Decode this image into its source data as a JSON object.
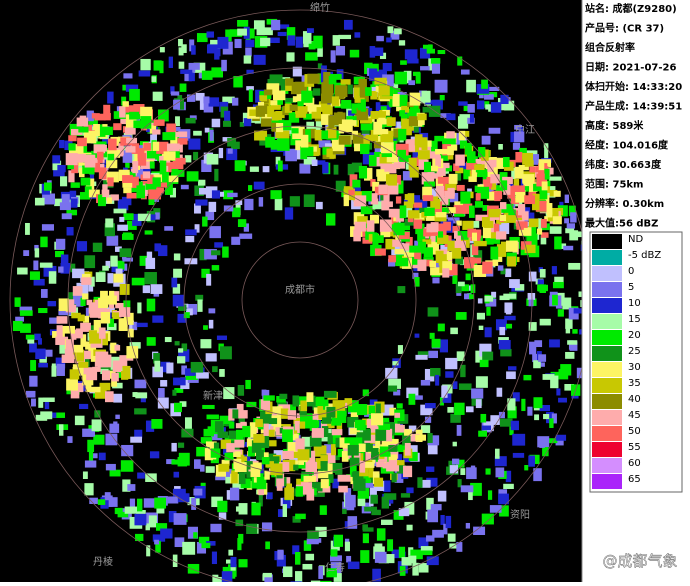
{
  "info": {
    "lines": [
      "站名: 成都(Z9280)",
      "产品号: (CR 37)",
      "组合反射率",
      "日期: 2021-07-26",
      "体扫开始: 14:33:20",
      "产品生成: 14:39:51",
      "高度: 589米",
      "经度: 104.016度",
      "纬度: 30.663度",
      "范围: 75km",
      "分辨率: 0.30km",
      "最大值:56 dBZ"
    ]
  },
  "legend": {
    "items": [
      {
        "label": "ND",
        "color": "#000000"
      },
      {
        "label": "-5 dBZ",
        "color": "#00aca4"
      },
      {
        "label": "0",
        "color": "#c0c0fe"
      },
      {
        "label": "5",
        "color": "#7a72ee"
      },
      {
        "label": "10",
        "color": "#1e26d0"
      },
      {
        "label": "15",
        "color": "#a6fca8"
      },
      {
        "label": "20",
        "color": "#00ea00"
      },
      {
        "label": "25",
        "color": "#10921a"
      },
      {
        "label": "30",
        "color": "#fcf464"
      },
      {
        "label": "35",
        "color": "#c8c802"
      },
      {
        "label": "40",
        "color": "#8c8c00"
      },
      {
        "label": "45",
        "color": "#feacac"
      },
      {
        "label": "50",
        "color": "#fe645c"
      },
      {
        "label": "55",
        "color": "#ee0230"
      },
      {
        "label": "60",
        "color": "#d48efe"
      },
      {
        "label": "65",
        "color": "#aa24fa"
      }
    ]
  },
  "map": {
    "places": [
      "绵竹",
      "中江",
      "成都市",
      "新津",
      "仁寿",
      "资阳",
      "丹棱"
    ]
  },
  "watermark": "@成都气象"
}
